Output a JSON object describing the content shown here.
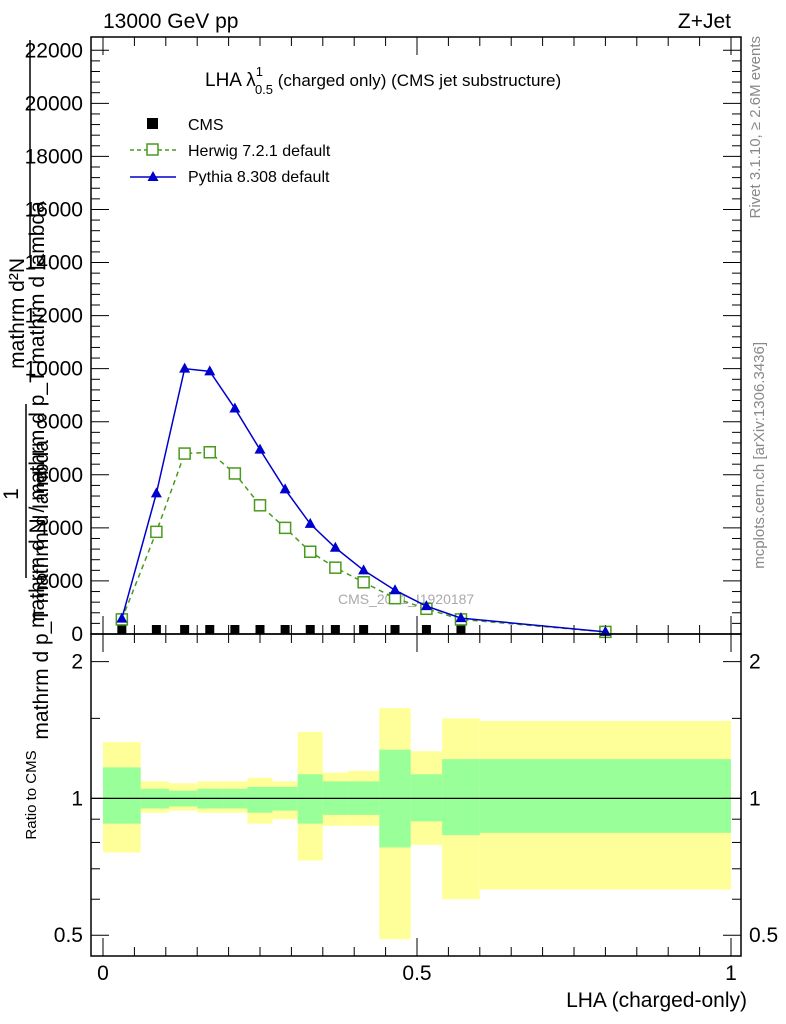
{
  "header": {
    "left": "13000 GeV pp",
    "right": "Z+Jet"
  },
  "title": {
    "main": "LHA λ",
    "sup": "1",
    "sub": "0.5",
    "rest": " (charged only) (CMS jet substructure)"
  },
  "ylabel": {
    "numerator": "1",
    "denominator": "mathrm d N / mathrm d p_T mathrm d lambda",
    "top_line1": "mathrm d²N",
    "top_line2": "mathrm d p_T mathrm d lambda"
  },
  "side": {
    "rivet": "Rivet 3.1.10, ≥ 2.6M events",
    "mcplots": "mcplots.cern.ch [arXiv:1306.3436]"
  },
  "watermark": "CMS_2021_I1920187",
  "ratio_ylabel": "Ratio to CMS",
  "xlabel": "LHA (charged-only)",
  "legend": [
    {
      "name": "CMS",
      "color": "#000000",
      "marker": "square"
    },
    {
      "name": "Herwig 7.2.1 default",
      "color": "#4a9a1e",
      "marker": "open-square"
    },
    {
      "name": "Pythia 8.308 default",
      "color": "#0000cc",
      "marker": "triangle"
    }
  ],
  "chart_data": [
    {
      "type": "line",
      "panel": "main",
      "x_ticks": [
        "0",
        "0.5",
        "1"
      ],
      "y_ticks": [
        "0",
        "2000",
        "4000",
        "6000",
        "8000",
        "10000",
        "12000",
        "14000",
        "16000",
        "18000",
        "20000",
        "22000"
      ],
      "xlim": [
        0,
        1
      ],
      "ylim": [
        0,
        22500
      ],
      "series": [
        {
          "name": "CMS",
          "x": [
            0.03,
            0.085,
            0.13,
            0.17,
            0.21,
            0.25,
            0.29,
            0.33,
            0.37,
            0.415,
            0.465,
            0.515,
            0.57
          ],
          "y": [
            0,
            0,
            0,
            0,
            0,
            0,
            0,
            0,
            0,
            0,
            0,
            0,
            0
          ]
        },
        {
          "name": "Herwig 7.2.1 default",
          "x": [
            0.03,
            0.085,
            0.13,
            0.17,
            0.21,
            0.25,
            0.29,
            0.33,
            0.37,
            0.415,
            0.465,
            0.515,
            0.57,
            0.8
          ],
          "y": [
            550,
            3850,
            6800,
            6850,
            6050,
            4850,
            4000,
            3100,
            2500,
            1950,
            1350,
            950,
            550,
            80
          ]
        },
        {
          "name": "Pythia 8.308 default",
          "x": [
            0.03,
            0.085,
            0.13,
            0.17,
            0.21,
            0.25,
            0.29,
            0.33,
            0.37,
            0.415,
            0.465,
            0.515,
            0.57,
            0.8
          ],
          "y": [
            580,
            5300,
            10000,
            9900,
            8500,
            6950,
            5450,
            4150,
            3250,
            2400,
            1650,
            1050,
            600,
            80
          ]
        }
      ]
    },
    {
      "type": "area",
      "panel": "ratio",
      "y_ticks": [
        "0.5",
        "1",
        "2"
      ],
      "ylim": [
        0.45,
        2.3
      ],
      "y_scale": "log",
      "reference": 1,
      "bins": [
        {
          "lo": 0.0,
          "hi": 0.06,
          "in_lo": 0.88,
          "in_hi": 1.17,
          "out_lo": 0.76,
          "out_hi": 1.33
        },
        {
          "lo": 0.06,
          "hi": 0.105,
          "in_lo": 0.95,
          "in_hi": 1.05,
          "out_lo": 0.93,
          "out_hi": 1.09
        },
        {
          "lo": 0.105,
          "hi": 0.15,
          "in_lo": 0.96,
          "in_hi": 1.04,
          "out_lo": 0.94,
          "out_hi": 1.08
        },
        {
          "lo": 0.15,
          "hi": 0.19,
          "in_lo": 0.95,
          "in_hi": 1.05,
          "out_lo": 0.93,
          "out_hi": 1.09
        },
        {
          "lo": 0.19,
          "hi": 0.23,
          "in_lo": 0.95,
          "in_hi": 1.05,
          "out_lo": 0.93,
          "out_hi": 1.09
        },
        {
          "lo": 0.23,
          "hi": 0.27,
          "in_lo": 0.93,
          "in_hi": 1.06,
          "out_lo": 0.88,
          "out_hi": 1.11
        },
        {
          "lo": 0.27,
          "hi": 0.31,
          "in_lo": 0.94,
          "in_hi": 1.06,
          "out_lo": 0.9,
          "out_hi": 1.09
        },
        {
          "lo": 0.31,
          "hi": 0.35,
          "in_lo": 0.88,
          "in_hi": 1.13,
          "out_lo": 0.73,
          "out_hi": 1.4
        },
        {
          "lo": 0.35,
          "hi": 0.39,
          "in_lo": 0.92,
          "in_hi": 1.09,
          "out_lo": 0.87,
          "out_hi": 1.14
        },
        {
          "lo": 0.39,
          "hi": 0.44,
          "in_lo": 0.92,
          "in_hi": 1.09,
          "out_lo": 0.87,
          "out_hi": 1.15
        },
        {
          "lo": 0.44,
          "hi": 0.49,
          "in_lo": 0.78,
          "in_hi": 1.28,
          "out_lo": 0.49,
          "out_hi": 1.58
        },
        {
          "lo": 0.49,
          "hi": 0.54,
          "in_lo": 0.89,
          "in_hi": 1.13,
          "out_lo": 0.79,
          "out_hi": 1.27
        },
        {
          "lo": 0.54,
          "hi": 0.6,
          "in_lo": 0.83,
          "in_hi": 1.22,
          "out_lo": 0.6,
          "out_hi": 1.5
        },
        {
          "lo": 0.6,
          "hi": 1.0,
          "in_lo": 0.84,
          "in_hi": 1.22,
          "out_lo": 0.63,
          "out_hi": 1.48
        }
      ]
    }
  ]
}
